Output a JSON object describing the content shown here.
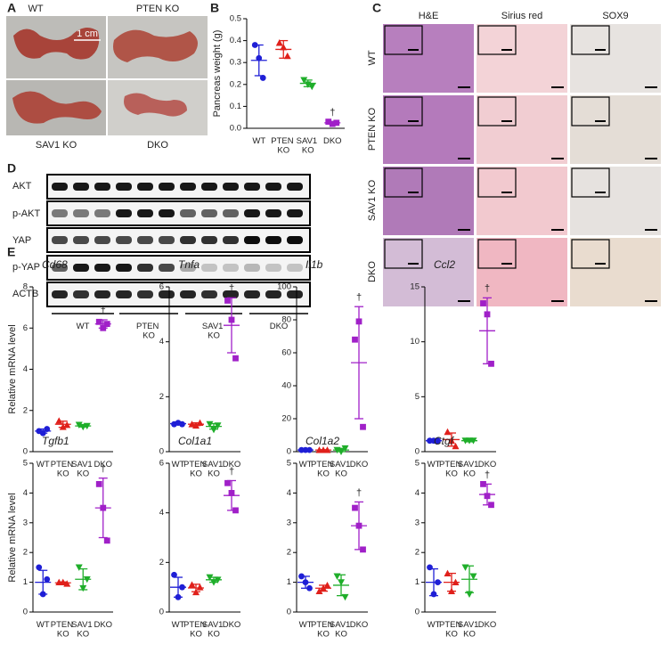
{
  "panel_labels": [
    "A",
    "B",
    "C",
    "D",
    "E"
  ],
  "panel_a": {
    "labels": [
      "WT",
      "PTEN KO",
      "SAV1 KO",
      "DKO"
    ],
    "scale_bar": "1 cm"
  },
  "panel_c": {
    "columns": [
      "H&E",
      "Sirius red",
      "SOX9"
    ],
    "rows": [
      "WT",
      "PTEN KO",
      "SAV1 KO",
      "DKO"
    ]
  },
  "panel_d": {
    "bands": [
      "AKT",
      "p-AKT",
      "YAP",
      "p-YAP",
      "ACTB"
    ],
    "groups": [
      "WT",
      "PTEN KO",
      "SAV1 KO",
      "DKO"
    ]
  },
  "chart_data": [
    {
      "type": "dot",
      "ylabel": "Pancreas weight (g)",
      "categories": [
        "WT",
        "PTEN KO",
        "SAV1 KO",
        "DKO"
      ],
      "annotation": "†",
      "ylim": [
        0,
        0.5
      ],
      "yticks": [
        {
          "value": 0,
          "label": "0.0"
        },
        0.1,
        0.2,
        0.3,
        0.4,
        0.5
      ],
      "groups": [
        {
          "color": "#1f1fd6",
          "marker": "circle",
          "values": [
            0.38,
            0.32,
            0.23
          ],
          "mean": 0.31,
          "sd": 0.07
        },
        {
          "color": "#e0201b",
          "marker": "triangle",
          "values": [
            0.39,
            0.37,
            0.33
          ],
          "mean": 0.36,
          "sd": 0.04
        },
        {
          "color": "#1fae2a",
          "marker": "triangle-down",
          "values": [
            0.22,
            0.2,
            0.19
          ],
          "mean": 0.205,
          "sd": 0.015
        },
        {
          "color": "#a020c8",
          "marker": "square",
          "values": [
            0.03,
            0.02,
            0.025
          ],
          "mean": 0.025,
          "sd": 0.005
        }
      ]
    },
    {
      "type": "dot",
      "title": "Cd68",
      "ylabel": "Relative mRNA level",
      "categories": [
        "WT",
        "PTEN KO",
        "SAV1 KO",
        "DKO"
      ],
      "annotation": "†",
      "ylim": [
        0,
        8
      ],
      "yticks": [
        0,
        2,
        4,
        6,
        8
      ],
      "groups": [
        {
          "color": "#1f1fd6",
          "marker": "circle",
          "values": [
            1.0,
            0.9,
            1.1
          ],
          "mean": 1.0,
          "sd": 0.1
        },
        {
          "color": "#e0201b",
          "marker": "triangle",
          "values": [
            1.5,
            1.2,
            1.3
          ],
          "mean": 1.33,
          "sd": 0.15
        },
        {
          "color": "#1fae2a",
          "marker": "triangle-down",
          "values": [
            1.3,
            1.2,
            1.25
          ],
          "mean": 1.25,
          "sd": 0.05
        },
        {
          "color": "#a020c8",
          "marker": "square",
          "values": [
            6.3,
            6.0,
            6.2
          ],
          "mean": 6.2,
          "sd": 0.2
        }
      ]
    },
    {
      "type": "dot",
      "title": "Tnfa",
      "categories": [
        "WT",
        "PTEN KO",
        "SAV1 KO",
        "DKO"
      ],
      "annotation": "†",
      "ylim": [
        0,
        6
      ],
      "yticks": [
        0,
        2,
        4,
        6
      ],
      "groups": [
        {
          "color": "#1f1fd6",
          "marker": "circle",
          "values": [
            1.0,
            1.05,
            1.0
          ],
          "mean": 1.02,
          "sd": 0.03
        },
        {
          "color": "#e0201b",
          "marker": "triangle",
          "values": [
            1.0,
            0.95,
            1.05
          ],
          "mean": 1.0,
          "sd": 0.05
        },
        {
          "color": "#1fae2a",
          "marker": "triangle-down",
          "values": [
            1.0,
            0.8,
            0.95
          ],
          "mean": 0.92,
          "sd": 0.1
        },
        {
          "color": "#a020c8",
          "marker": "square",
          "values": [
            5.5,
            4.8,
            3.4
          ],
          "mean": 4.6,
          "sd": 1.0
        }
      ]
    },
    {
      "type": "dot",
      "title": "Il1b",
      "categories": [
        "WT",
        "PTEN KO",
        "SAV1 KO",
        "DKO"
      ],
      "annotation": "†",
      "ylim": [
        0,
        100
      ],
      "yticks": [
        0,
        20,
        40,
        60,
        80,
        100
      ],
      "groups": [
        {
          "color": "#1f1fd6",
          "marker": "circle",
          "values": [
            1,
            1,
            1
          ],
          "mean": 1,
          "sd": 0.2
        },
        {
          "color": "#e0201b",
          "marker": "triangle",
          "values": [
            1,
            1,
            1
          ],
          "mean": 1,
          "sd": 0.2
        },
        {
          "color": "#1fae2a",
          "marker": "triangle-down",
          "values": [
            1,
            0,
            2
          ],
          "mean": 1,
          "sd": 1
        },
        {
          "color": "#a020c8",
          "marker": "square",
          "values": [
            68,
            79,
            15
          ],
          "mean": 54,
          "sd": 34
        }
      ]
    },
    {
      "type": "dot",
      "title": "Ccl2",
      "categories": [
        "WT",
        "PTEN KO",
        "SAV1 KO",
        "DKO"
      ],
      "annotation": "†",
      "ylim": [
        0,
        15
      ],
      "yticks": [
        0,
        5,
        10,
        15
      ],
      "groups": [
        {
          "color": "#1f1fd6",
          "marker": "circle",
          "values": [
            1,
            1,
            1
          ],
          "mean": 1,
          "sd": 0.1
        },
        {
          "color": "#e0201b",
          "marker": "triangle",
          "values": [
            1.8,
            1,
            0.5
          ],
          "mean": 1.1,
          "sd": 0.6
        },
        {
          "color": "#1fae2a",
          "marker": "triangle-down",
          "values": [
            1,
            1,
            1
          ],
          "mean": 1,
          "sd": 0.1
        },
        {
          "color": "#a020c8",
          "marker": "square",
          "values": [
            13.5,
            12.5,
            8
          ],
          "mean": 11,
          "sd": 3
        }
      ]
    },
    {
      "type": "dot",
      "title": "Tgfb1",
      "ylabel": "Relative mRNA level",
      "categories": [
        "WT",
        "PTEN KO",
        "SAV1 KO",
        "DKO"
      ],
      "annotation": "†",
      "ylim": [
        0,
        5
      ],
      "yticks": [
        0,
        1,
        2,
        3,
        4,
        5
      ],
      "groups": [
        {
          "color": "#1f1fd6",
          "marker": "circle",
          "values": [
            1.5,
            0.6,
            1.1
          ],
          "mean": 1.0,
          "sd": 0.4
        },
        {
          "color": "#e0201b",
          "marker": "triangle",
          "values": [
            1.0,
            1.0,
            0.95
          ],
          "mean": 0.98,
          "sd": 0.03
        },
        {
          "color": "#1fae2a",
          "marker": "triangle-down",
          "values": [
            1.5,
            0.8,
            1.1
          ],
          "mean": 1.1,
          "sd": 0.35
        },
        {
          "color": "#a020c8",
          "marker": "square",
          "values": [
            4.3,
            3.5,
            2.4
          ],
          "mean": 3.5,
          "sd": 1.0
        }
      ]
    },
    {
      "type": "dot",
      "title": "Col1a1",
      "categories": [
        "WT",
        "PTEN KO",
        "SAV1 KO",
        "DKO"
      ],
      "annotation": "†",
      "ylim": [
        0,
        6
      ],
      "yticks": [
        0,
        2,
        4,
        6
      ],
      "groups": [
        {
          "color": "#1f1fd6",
          "marker": "circle",
          "values": [
            1.5,
            0.6,
            1.0
          ],
          "mean": 1.0,
          "sd": 0.4
        },
        {
          "color": "#e0201b",
          "marker": "triangle",
          "values": [
            1.1,
            0.8,
            1.0
          ],
          "mean": 0.97,
          "sd": 0.15
        },
        {
          "color": "#1fae2a",
          "marker": "triangle-down",
          "values": [
            1.4,
            1.2,
            1.3
          ],
          "mean": 1.3,
          "sd": 0.1
        },
        {
          "color": "#a020c8",
          "marker": "square",
          "values": [
            5.2,
            4.8,
            4.1
          ],
          "mean": 4.7,
          "sd": 0.6
        }
      ]
    },
    {
      "type": "dot",
      "title": "Col1a2",
      "categories": [
        "WT",
        "PTEN KO",
        "SAV1 KO",
        "DKO"
      ],
      "annotation": "†",
      "ylim": [
        0,
        5
      ],
      "yticks": [
        0,
        1,
        2,
        3,
        4,
        5
      ],
      "groups": [
        {
          "color": "#1f1fd6",
          "marker": "circle",
          "values": [
            1.2,
            1.0,
            0.8
          ],
          "mean": 1.0,
          "sd": 0.2
        },
        {
          "color": "#e0201b",
          "marker": "triangle",
          "values": [
            0.7,
            0.8,
            0.9
          ],
          "mean": 0.8,
          "sd": 0.1
        },
        {
          "color": "#1fae2a",
          "marker": "triangle-down",
          "values": [
            1.2,
            1.0,
            0.5
          ],
          "mean": 0.9,
          "sd": 0.35
        },
        {
          "color": "#a020c8",
          "marker": "square",
          "values": [
            3.5,
            2.9,
            2.1
          ],
          "mean": 2.9,
          "sd": 0.8
        }
      ]
    },
    {
      "type": "dot",
      "title": "Ctgf",
      "categories": [
        "WT",
        "PTEN KO",
        "SAV1 KO",
        "DKO"
      ],
      "annotation": "†",
      "ylim": [
        0,
        5
      ],
      "yticks": [
        0,
        1,
        2,
        3,
        4,
        5
      ],
      "groups": [
        {
          "color": "#1f1fd6",
          "marker": "circle",
          "values": [
            1.5,
            0.6,
            1.0
          ],
          "mean": 1.0,
          "sd": 0.45
        },
        {
          "color": "#e0201b",
          "marker": "triangle",
          "values": [
            1.3,
            0.7,
            1.0
          ],
          "mean": 1.0,
          "sd": 0.3
        },
        {
          "color": "#1fae2a",
          "marker": "triangle-down",
          "values": [
            1.5,
            0.6,
            1.2
          ],
          "mean": 1.1,
          "sd": 0.45
        },
        {
          "color": "#a020c8",
          "marker": "square",
          "values": [
            4.3,
            3.9,
            3.6
          ],
          "mean": 3.95,
          "sd": 0.35
        }
      ]
    }
  ]
}
